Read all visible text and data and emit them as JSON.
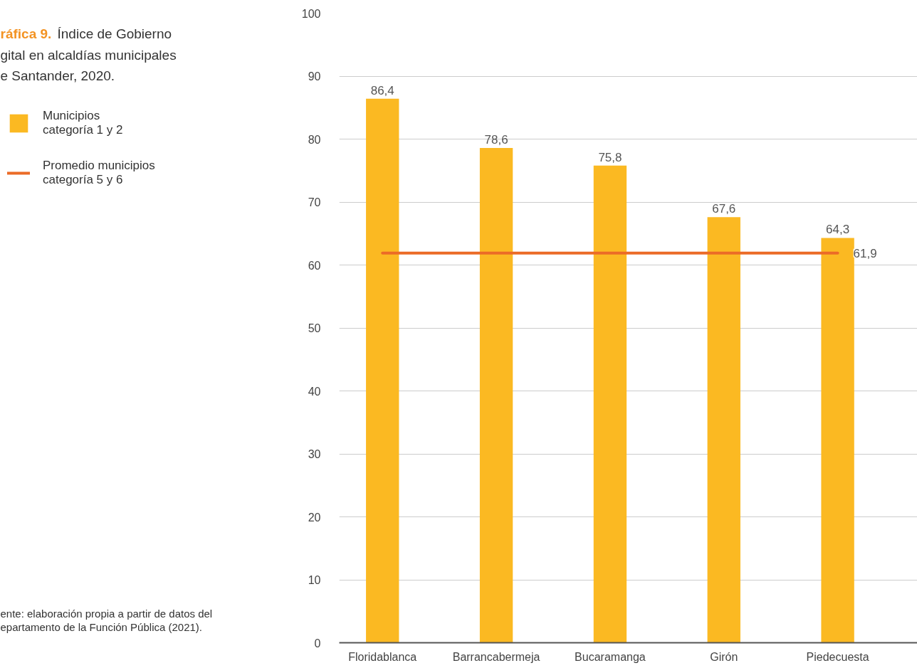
{
  "chart_data": {
    "type": "bar",
    "title": "ráfica 9.",
    "subtitle": "Índice de Gobierno\ngital en alcaldías municipales\ne Santander, 2020.",
    "categories": [
      "Floridablanca",
      "Barrancabermeja",
      "Bucaramanga",
      "Girón",
      "Piedecuesta"
    ],
    "series": [
      {
        "name": "Municipios\ncategoría 1 y 2",
        "color": "#fbb922",
        "values": [
          86.4,
          78.6,
          75.8,
          67.6,
          64.3
        ],
        "value_labels": [
          "86,4",
          "78,6",
          "75,8",
          "67,6",
          "64,3"
        ]
      },
      {
        "name": "Promedio municipios\ncategoría 5 y 6",
        "type": "line",
        "color": "#eb6b27",
        "values": [
          61.9,
          61.9,
          61.9,
          61.9,
          61.9
        ],
        "value_labels": [
          null,
          null,
          null,
          null,
          "61,9"
        ]
      }
    ],
    "ylim": [
      0,
      100
    ],
    "yticks": [
      0,
      10,
      20,
      30,
      40,
      50,
      60,
      70,
      80,
      90,
      100
    ],
    "grid": "y",
    "legend": "left",
    "annotations": [
      "ente: elaboración propia a partir de datos del\nepartamento de la Función Pública (2021)."
    ]
  }
}
